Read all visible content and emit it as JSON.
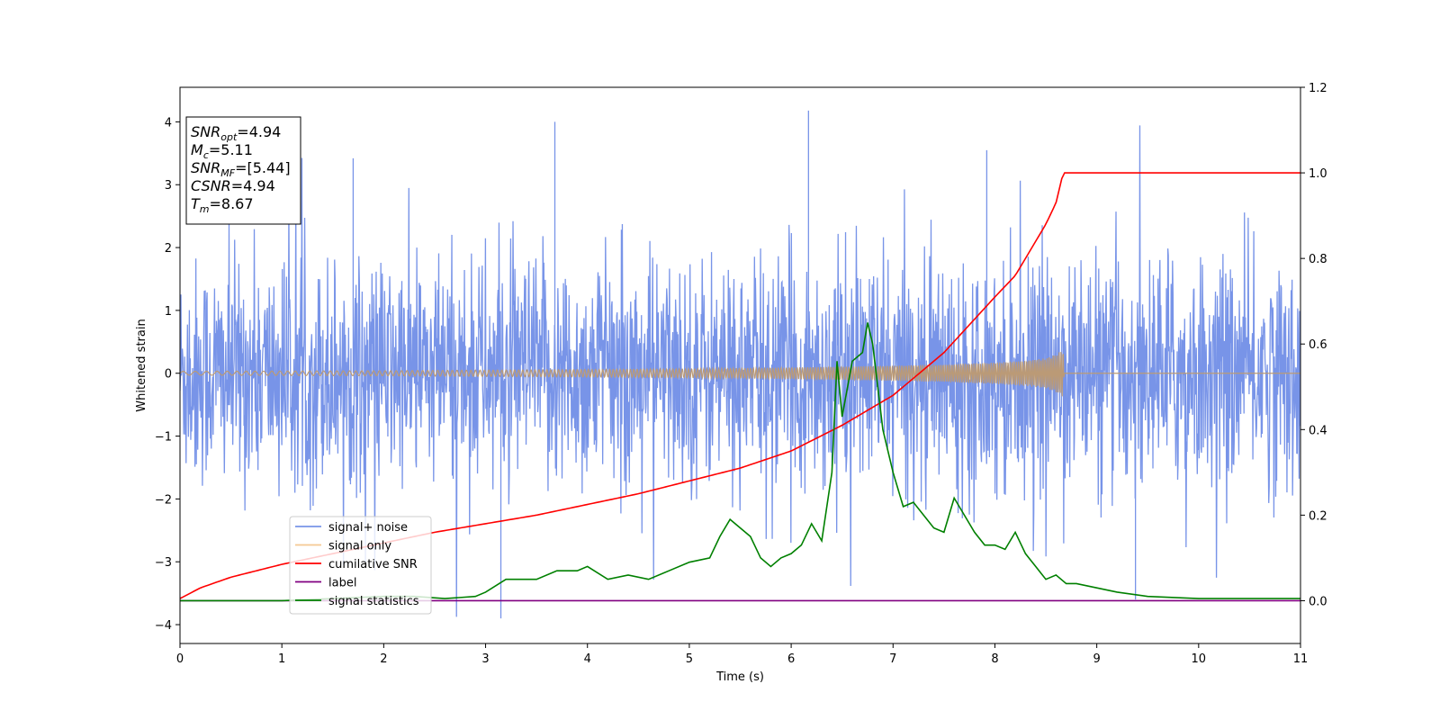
{
  "chart_data": {
    "type": "line",
    "xlabel": "Time (s)",
    "ylabel": "Whitened strain",
    "xlim": [
      0,
      11
    ],
    "ylim": [
      -4.3,
      4.55
    ],
    "y2lim": [
      -0.1,
      1.2
    ],
    "x_ticks": [
      0,
      1,
      2,
      3,
      4,
      5,
      6,
      7,
      8,
      9,
      10,
      11
    ],
    "y_ticks": [
      -4,
      -3,
      -2,
      -1,
      0,
      1,
      2,
      3,
      4
    ],
    "y2_ticks": [
      0.0,
      0.2,
      0.4,
      0.6,
      0.8,
      1.0,
      1.2
    ],
    "legend_location": "lower-left",
    "grid": false,
    "info_box": [
      {
        "name": "SNR",
        "sub": "opt",
        "value": "=4.94"
      },
      {
        "name": "M",
        "sub": "c",
        "value": "=5.11"
      },
      {
        "name": "SNR",
        "sub": "MF",
        "value": "=[5.44]"
      },
      {
        "name": "CSNR",
        "sub": "",
        "value": "=4.94"
      },
      {
        "name": "T",
        "sub": "m",
        "value": "=8.67"
      }
    ],
    "series": [
      {
        "name": "signal+ noise",
        "axis": "left",
        "color": "#7894e8",
        "noise_envelope": {
          "x": [
            0,
            11
          ],
          "typical_low": -1.8,
          "typical_high": 1.8,
          "min": -3.9,
          "max": 4.18
        }
      },
      {
        "name": "signal only",
        "axis": "left",
        "color": "#bb9a76",
        "legend_color": "#f5c993",
        "envelope_x": [
          0,
          1,
          2,
          3,
          4,
          5,
          6,
          7,
          7.5,
          8,
          8.3,
          8.5,
          8.6,
          8.67,
          8.68,
          11
        ],
        "envelope_amplitude": [
          0.03,
          0.035,
          0.04,
          0.05,
          0.06,
          0.07,
          0.09,
          0.12,
          0.14,
          0.17,
          0.2,
          0.24,
          0.3,
          0.38,
          0.0,
          0.0
        ]
      },
      {
        "name": "cumilative SNR",
        "axis": "right",
        "color": "#ff0000",
        "x": [
          0,
          0.2,
          0.5,
          1,
          1.5,
          2,
          2.5,
          3,
          3.5,
          4,
          4.5,
          5,
          5.5,
          6,
          6.5,
          7,
          7.5,
          8,
          8.2,
          8.4,
          8.5,
          8.6,
          8.67,
          9,
          10,
          11
        ],
        "values": [
          0.005,
          0.03,
          0.055,
          0.085,
          0.11,
          0.135,
          0.16,
          0.18,
          0.2,
          0.225,
          0.25,
          0.28,
          0.31,
          0.35,
          0.41,
          0.48,
          0.58,
          0.71,
          0.76,
          0.84,
          0.88,
          0.93,
          1.0,
          1.0,
          1.0,
          1.0
        ]
      },
      {
        "name": "label",
        "axis": "right",
        "color": "#800080",
        "x": [
          0,
          11
        ],
        "values": [
          0,
          0
        ]
      },
      {
        "name": "signal statistics",
        "axis": "right",
        "color": "#008000",
        "x": [
          0,
          0.5,
          1,
          1.5,
          2,
          2.3,
          2.6,
          2.9,
          3.0,
          3.2,
          3.5,
          3.7,
          3.9,
          4.0,
          4.2,
          4.4,
          4.6,
          4.8,
          5.0,
          5.2,
          5.3,
          5.4,
          5.5,
          5.6,
          5.7,
          5.8,
          5.9,
          6.0,
          6.1,
          6.2,
          6.3,
          6.4,
          6.45,
          6.5,
          6.6,
          6.7,
          6.75,
          6.8,
          6.9,
          7.0,
          7.1,
          7.2,
          7.3,
          7.4,
          7.5,
          7.6,
          7.7,
          7.8,
          7.9,
          8.0,
          8.1,
          8.2,
          8.3,
          8.4,
          8.5,
          8.6,
          8.7,
          8.8,
          9.0,
          9.2,
          9.5,
          10,
          11
        ],
        "values": [
          0.0,
          0.0,
          0.0,
          0.005,
          0.01,
          0.01,
          0.005,
          0.01,
          0.02,
          0.05,
          0.05,
          0.07,
          0.07,
          0.08,
          0.05,
          0.06,
          0.05,
          0.07,
          0.09,
          0.1,
          0.15,
          0.19,
          0.17,
          0.15,
          0.1,
          0.08,
          0.1,
          0.11,
          0.13,
          0.18,
          0.14,
          0.3,
          0.56,
          0.43,
          0.56,
          0.58,
          0.65,
          0.6,
          0.4,
          0.3,
          0.22,
          0.23,
          0.2,
          0.17,
          0.16,
          0.24,
          0.2,
          0.16,
          0.13,
          0.13,
          0.12,
          0.16,
          0.11,
          0.08,
          0.05,
          0.06,
          0.04,
          0.04,
          0.03,
          0.02,
          0.01,
          0.005,
          0.005
        ]
      }
    ]
  }
}
